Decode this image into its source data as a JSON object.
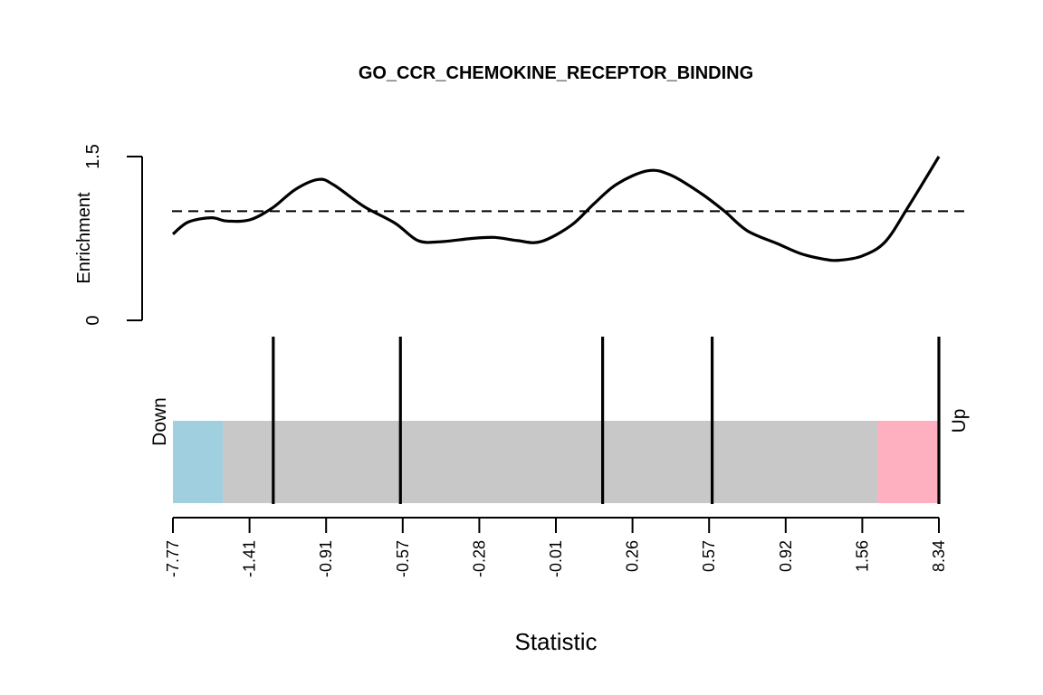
{
  "chart_data": {
    "type": "line",
    "title": "GO_CCR_CHEMOKINE_RECEPTOR_BINDING",
    "ylabel": "Enrichment",
    "xlabel": "Statistic",
    "ylim": [
      0,
      1.5
    ],
    "y_ticks": [
      "0",
      "1.5"
    ],
    "reference_line": 1.0,
    "enrichment_curve": {
      "x_rank_fraction": [
        0,
        0.02,
        0.05,
        0.07,
        0.1,
        0.13,
        0.16,
        0.19,
        0.21,
        0.25,
        0.29,
        0.32,
        0.35,
        0.39,
        0.42,
        0.45,
        0.48,
        0.52,
        0.55,
        0.58,
        0.62,
        0.65,
        0.69,
        0.72,
        0.75,
        0.79,
        0.82,
        0.85,
        0.87,
        0.9,
        0.93,
        0.96,
        1.0
      ],
      "enrichment": [
        0.79,
        0.9,
        0.94,
        0.91,
        0.92,
        1.03,
        1.2,
        1.29,
        1.24,
        1.04,
        0.89,
        0.73,
        0.72,
        0.75,
        0.76,
        0.73,
        0.72,
        0.87,
        1.07,
        1.25,
        1.37,
        1.33,
        1.16,
        1.0,
        0.82,
        0.7,
        0.61,
        0.56,
        0.55,
        0.59,
        0.72,
        1.04,
        1.5
      ]
    },
    "barcode": {
      "left_label": "Down",
      "right_label": "Up",
      "down_color": "#a0d0e0",
      "neutral_color": "#c8c8c8",
      "up_color": "#ffb0c0",
      "down_region_end_fraction": 0.065,
      "up_region_start_fraction": 0.92,
      "gene_positions_fraction": [
        0.131,
        0.297,
        0.561,
        0.704,
        1.0
      ]
    },
    "x_tick_labels": [
      "-7.77",
      "-1.41",
      "-0.91",
      "-0.57",
      "-0.28",
      "-0.01",
      "0.26",
      "0.57",
      "0.92",
      "1.56",
      "8.34"
    ]
  }
}
